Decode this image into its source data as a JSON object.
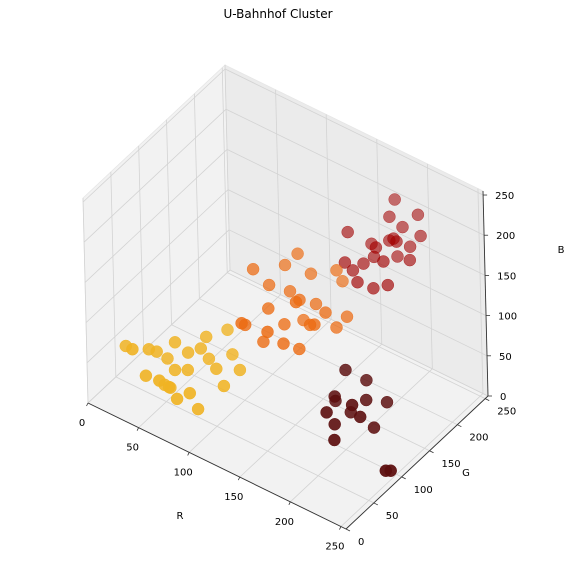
{
  "chart_data": {
    "type": "scatter",
    "title": "U-Bahnhof Cluster",
    "xlabel": "R",
    "ylabel": "G",
    "zlabel": "B",
    "xlim": [
      0,
      255
    ],
    "ylim": [
      0,
      255
    ],
    "zlim": [
      0,
      255
    ],
    "x_ticks": [
      "0",
      "50",
      "100",
      "150",
      "200",
      "250"
    ],
    "y_ticks": [
      "0",
      "50",
      "100",
      "150",
      "200",
      "250"
    ],
    "z_ticks": [
      "0",
      "50",
      "100",
      "150",
      "200",
      "250"
    ],
    "grid": true,
    "series": [
      {
        "name": "yellow-cluster",
        "color": "#f0b323",
        "points": [
          [
            40,
            10,
            85
          ],
          [
            25,
            25,
            70
          ],
          [
            45,
            30,
            75
          ],
          [
            50,
            35,
            72
          ],
          [
            60,
            50,
            80
          ],
          [
            55,
            45,
            60
          ],
          [
            60,
            30,
            40
          ],
          [
            65,
            40,
            55
          ],
          [
            70,
            55,
            70
          ],
          [
            80,
            60,
            78
          ],
          [
            85,
            65,
            65
          ],
          [
            70,
            20,
            50
          ],
          [
            90,
            35,
            25
          ],
          [
            65,
            12,
            60
          ],
          [
            75,
            45,
            58
          ],
          [
            80,
            70,
            86
          ],
          [
            95,
            60,
            62
          ],
          [
            85,
            30,
            45
          ],
          [
            100,
            80,
            70
          ],
          [
            110,
            75,
            60
          ],
          [
            60,
            40,
            30
          ],
          [
            50,
            15,
            55
          ],
          [
            90,
            90,
            88
          ],
          [
            105,
            55,
            50
          ],
          [
            75,
            25,
            35
          ]
        ]
      },
      {
        "name": "orange-cluster",
        "color": "#ec6a10",
        "points": [
          [
            100,
            120,
            150
          ],
          [
            110,
            130,
            130
          ],
          [
            115,
            150,
            145
          ],
          [
            120,
            110,
            120
          ],
          [
            125,
            140,
            125
          ],
          [
            130,
            120,
            100
          ],
          [
            135,
            160,
            140
          ],
          [
            140,
            100,
            95
          ],
          [
            145,
            150,
            115
          ],
          [
            150,
            130,
            105
          ],
          [
            155,
            170,
            150
          ],
          [
            160,
            140,
            120
          ],
          [
            120,
            100,
            85
          ],
          [
            130,
            90,
            110
          ],
          [
            165,
            150,
            98
          ],
          [
            110,
            80,
            115
          ],
          [
            140,
            130,
            130
          ],
          [
            150,
            110,
            88
          ],
          [
            125,
            155,
            162
          ],
          [
            170,
            160,
            108
          ],
          [
            105,
            95,
            100
          ],
          [
            160,
            120,
            118
          ],
          [
            135,
            145,
            92
          ],
          [
            145,
            115,
            140
          ],
          [
            155,
            180,
            130
          ]
        ]
      },
      {
        "name": "red-cluster",
        "color": "#a10000",
        "points": [
          [
            170,
            210,
            150
          ],
          [
            180,
            220,
            170
          ],
          [
            185,
            200,
            160
          ],
          [
            175,
            230,
            190
          ],
          [
            190,
            215,
            178
          ],
          [
            165,
            200,
            145
          ],
          [
            195,
            230,
            165
          ],
          [
            160,
            190,
            140
          ],
          [
            200,
            240,
            175
          ],
          [
            180,
            190,
            130
          ],
          [
            175,
            240,
            205
          ],
          [
            185,
            225,
            150
          ],
          [
            170,
            180,
            138
          ],
          [
            190,
            210,
            185
          ],
          [
            165,
            215,
            160
          ],
          [
            200,
            220,
            158
          ],
          [
            150,
            200,
            175
          ],
          [
            195,
            245,
            195
          ],
          [
            175,
            205,
            168
          ],
          [
            185,
            235,
            180
          ],
          [
            155,
            185,
            150
          ],
          [
            190,
            198,
            135
          ]
        ]
      },
      {
        "name": "dark-cluster",
        "color": "#5c0e0e",
        "points": [
          [
            190,
            100,
            60
          ],
          [
            200,
            110,
            40
          ],
          [
            210,
            120,
            55
          ],
          [
            195,
            90,
            35
          ],
          [
            205,
            130,
            70
          ],
          [
            215,
            100,
            50
          ],
          [
            185,
            110,
            45
          ],
          [
            220,
            115,
            30
          ],
          [
            200,
            80,
            25
          ],
          [
            210,
            95,
            65
          ],
          [
            190,
            120,
            80
          ],
          [
            225,
            130,
            55
          ],
          [
            245,
            90,
            8
          ],
          [
            247,
            95,
            6
          ],
          [
            190,
            85,
            50
          ]
        ]
      }
    ]
  }
}
